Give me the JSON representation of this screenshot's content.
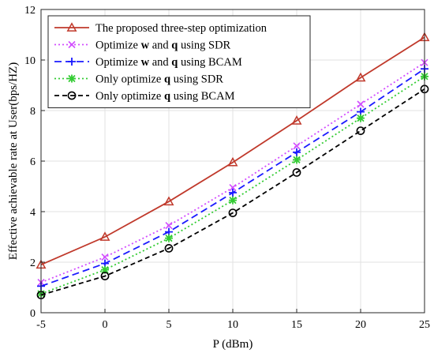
{
  "chart_data": {
    "type": "line",
    "title": "",
    "xlabel": "P (dBm)",
    "ylabel": "Effective achievable rate at User(bps/HZ)",
    "x": [
      -5,
      0,
      5,
      10,
      15,
      20,
      25
    ],
    "xlim": [
      -5,
      25
    ],
    "ylim": [
      0,
      12
    ],
    "xticks": [
      "-5",
      "0",
      "5",
      "10",
      "15",
      "20",
      "25"
    ],
    "yticks": [
      "0",
      "2",
      "4",
      "6",
      "8",
      "10",
      "12"
    ],
    "grid": true,
    "legend_position": "top-left",
    "series": [
      {
        "name": "The proposed three-step optimization",
        "legend": {
          "pre": "The proposed three-step optimization"
        },
        "values": [
          1.9,
          3.0,
          4.4,
          5.95,
          7.6,
          9.3,
          10.9
        ],
        "color": "#c0392b",
        "dash": "",
        "marker": "triangle"
      },
      {
        "name": "Optimize w and q using SDR",
        "legend": {
          "pre": "Optimize ",
          "b1": "w",
          "mid": " and ",
          "b2": "q",
          "post": " using SDR"
        },
        "values": [
          1.2,
          2.2,
          3.45,
          4.95,
          6.6,
          8.25,
          9.9
        ],
        "color": "#d24dff",
        "dash": "2 3",
        "marker": "x"
      },
      {
        "name": "Optimize w and q using BCAM",
        "legend": {
          "pre": "Optimize ",
          "b1": "w",
          "mid": " and ",
          "b2": "q",
          "post": " using BCAM"
        },
        "values": [
          1.05,
          1.95,
          3.2,
          4.75,
          6.35,
          7.95,
          9.65
        ],
        "color": "#1a1aff",
        "dash": "9 5",
        "marker": "plus"
      },
      {
        "name": "Only optimize q using SDR",
        "legend": {
          "pre": "Only optimize ",
          "b1": "q",
          "post": " using SDR"
        },
        "values": [
          0.75,
          1.7,
          2.95,
          4.45,
          6.05,
          7.7,
          9.35
        ],
        "color": "#33cc33",
        "dash": "2 3",
        "marker": "star"
      },
      {
        "name": "Only optimize q using BCAM",
        "legend": {
          "pre": "Only optimize ",
          "b1": "q",
          "post": " using BCAM"
        },
        "values": [
          0.7,
          1.45,
          2.55,
          3.95,
          5.55,
          7.2,
          8.85
        ],
        "color": "#000000",
        "dash": "6 4",
        "marker": "circle"
      }
    ]
  }
}
